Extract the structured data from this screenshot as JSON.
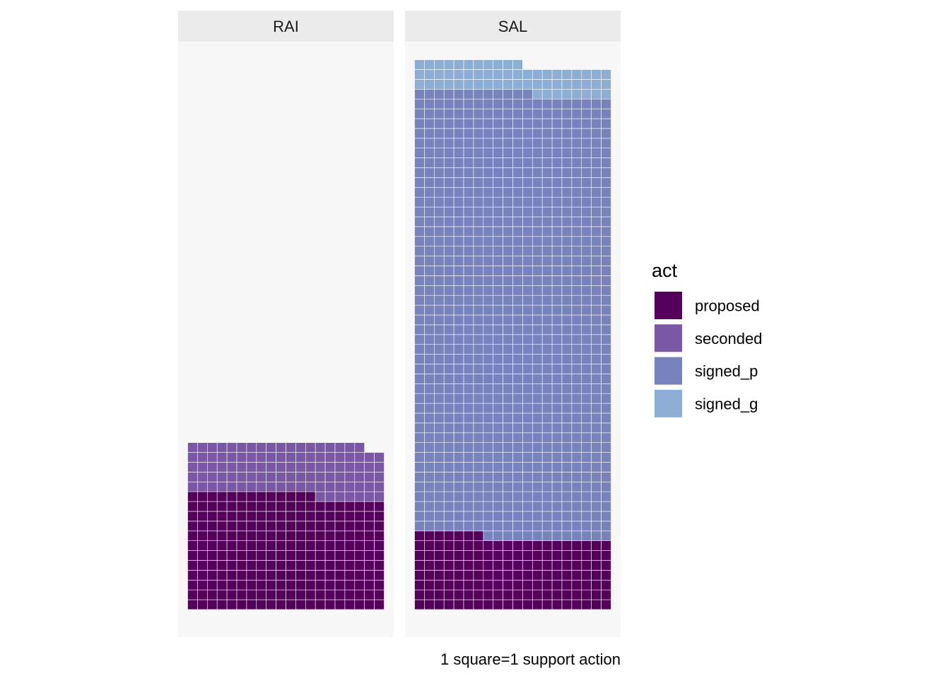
{
  "chart_data": {
    "type": "waffle",
    "legend_title": "act",
    "legend_position": "right",
    "caption": "1 square=1 support action",
    "grid": false,
    "categories": [
      "proposed",
      "seconded",
      "signed_p",
      "signed_g"
    ],
    "colors": {
      "proposed": "#54005b",
      "seconded": "#7b58a5",
      "signed_p": "#7882bc",
      "signed_g": "#8daed4",
      "panel_bg": "#f7f7f7",
      "strip_bg": "#ebebeb",
      "tile_border": "#ffffff"
    },
    "squares_per_row": 20,
    "panels": [
      {
        "label": "RAI",
        "values": {
          "proposed": 233,
          "seconded": 105,
          "signed_p": 0,
          "signed_g": 0
        }
      },
      {
        "label": "SAL",
        "values": {
          "proposed": 147,
          "seconded": 0,
          "signed_p": 905,
          "signed_g": 59
        }
      }
    ]
  }
}
